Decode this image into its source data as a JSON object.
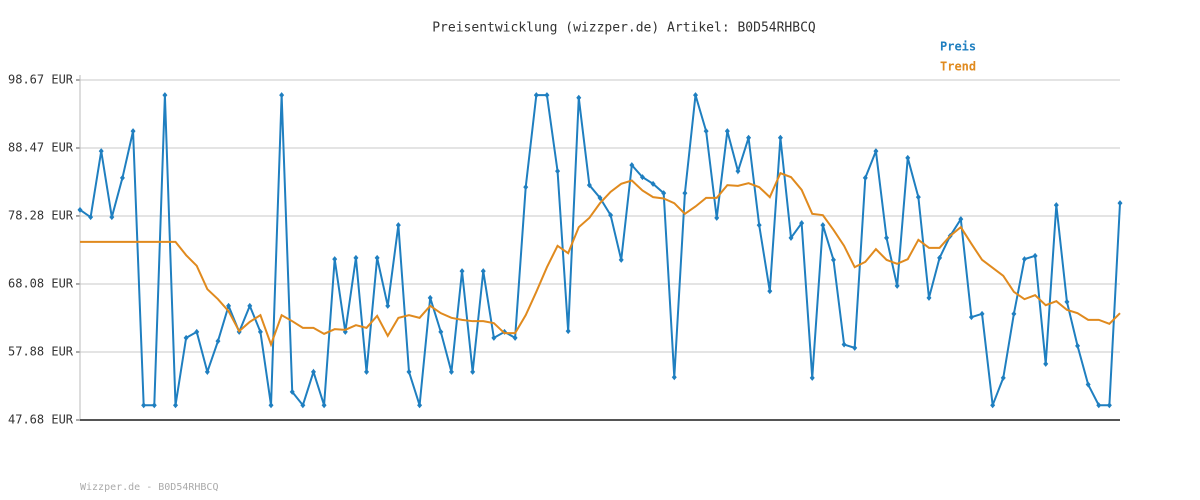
{
  "chart_data": {
    "type": "line",
    "title": "Preisentwicklung (wizzper.de) Artikel: B0D54RHBCQ",
    "footer": "Wizzper.de - B0D54RHBCQ",
    "ylim": [
      47.68,
      98.67
    ],
    "yticks": [
      {
        "value": 47.68,
        "label": "47.68 EUR"
      },
      {
        "value": 57.88,
        "label": "57.88 EUR"
      },
      {
        "value": 68.08,
        "label": "68.08 EUR"
      },
      {
        "value": 78.28,
        "label": "78.28 EUR"
      },
      {
        "value": 88.47,
        "label": "88.47 EUR"
      },
      {
        "value": 98.67,
        "label": "98.67 EUR"
      }
    ],
    "grid": true,
    "legend": "top-right",
    "series": [
      {
        "name": "Preis",
        "color": "#1f7fc0",
        "markers": true,
        "values": [
          79.2,
          78.1,
          88.0,
          78.1,
          84.0,
          91.0,
          49.9,
          49.9,
          96.4,
          49.9,
          60.0,
          60.9,
          54.9,
          59.5,
          64.8,
          60.9,
          64.8,
          60.9,
          49.9,
          96.4,
          51.9,
          49.9,
          54.9,
          49.9,
          71.8,
          60.9,
          72.0,
          54.9,
          72.0,
          64.8,
          76.9,
          54.9,
          49.9,
          66.0,
          60.9,
          54.9,
          70.0,
          54.9,
          70.0,
          60.0,
          60.9,
          60.0,
          82.6,
          96.4,
          96.4,
          85.0,
          61.0,
          96.0,
          82.9,
          81.0,
          78.4,
          71.7,
          85.9,
          84.1,
          83.1,
          81.7,
          54.1,
          81.7,
          96.4,
          91.0,
          78.0,
          91.0,
          85.0,
          90.0,
          76.9,
          67.0,
          90.0,
          75.0,
          77.2,
          54.0,
          76.9,
          71.7,
          59.0,
          58.5,
          84.0,
          88.0,
          75.0,
          67.8,
          87.0,
          81.1,
          66.0,
          72.0,
          75.3,
          77.8,
          63.1,
          63.6,
          49.9,
          54.0,
          63.6,
          71.8,
          72.3,
          56.1,
          79.9,
          65.4,
          58.8,
          53.0,
          49.9,
          49.9,
          80.2
        ]
      },
      {
        "name": "Trend",
        "color": "#e08a1e",
        "markers": false,
        "values": [
          74.4,
          74.4,
          74.4,
          74.4,
          74.4,
          74.4,
          74.4,
          74.4,
          74.4,
          74.4,
          72.4,
          70.8,
          67.3,
          65.8,
          64.0,
          61.0,
          62.4,
          63.4,
          59.0,
          63.4,
          62.5,
          61.5,
          61.5,
          60.6,
          61.3,
          61.2,
          61.9,
          61.5,
          63.3,
          60.3,
          63.0,
          63.4,
          63.0,
          64.8,
          63.7,
          63.0,
          62.7,
          62.5,
          62.5,
          62.2,
          60.7,
          60.7,
          63.4,
          66.9,
          70.6,
          73.8,
          72.7,
          76.6,
          78.0,
          80.2,
          81.9,
          83.1,
          83.6,
          82.1,
          81.1,
          80.9,
          80.2,
          78.6,
          79.7,
          81.0,
          81.0,
          82.9,
          82.8,
          83.2,
          82.6,
          81.1,
          84.7,
          84.1,
          82.2,
          78.6,
          78.4,
          76.2,
          73.8,
          70.6,
          71.4,
          73.3,
          71.7,
          71.1,
          71.8,
          74.7,
          73.5,
          73.5,
          75.3,
          76.6,
          74.1,
          71.7,
          70.5,
          69.3,
          66.9,
          65.8,
          66.4,
          64.9,
          65.5,
          64.2,
          63.7,
          62.7,
          62.7,
          62.1,
          63.7
        ]
      }
    ]
  }
}
